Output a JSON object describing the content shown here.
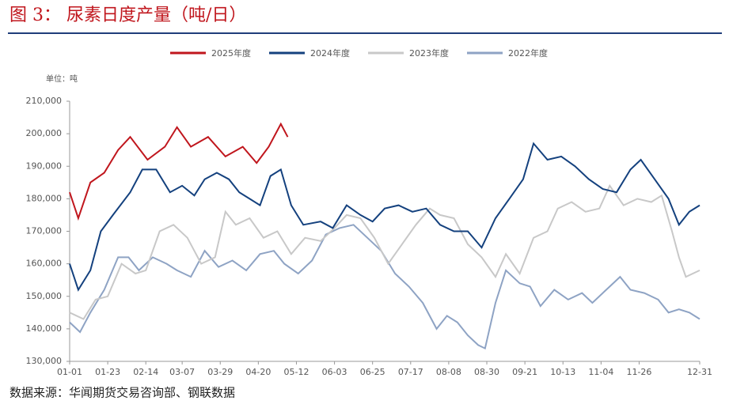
{
  "chart_data": {
    "type": "line",
    "title": "图 3：  尿素日度产量（吨/日）",
    "unit_label": "单位：吨",
    "source": "数据来源：华闻期货交易咨询部、钢联数据",
    "ylim": [
      130000,
      210000
    ],
    "yticks": [
      {
        "value": 130000,
        "label": "130,000"
      },
      {
        "value": 140000,
        "label": "140,000"
      },
      {
        "value": 150000,
        "label": "150,000"
      },
      {
        "value": 160000,
        "label": "160,000"
      },
      {
        "value": 170000,
        "label": "170,000"
      },
      {
        "value": 180000,
        "label": "180,000"
      },
      {
        "value": 190000,
        "label": "190,000"
      },
      {
        "value": 200000,
        "label": "200,000"
      },
      {
        "value": 210000,
        "label": "210,000"
      }
    ],
    "xlim": [
      0,
      364
    ],
    "xticks": [
      {
        "value": 0,
        "label": "01-01"
      },
      {
        "value": 22,
        "label": "01-23"
      },
      {
        "value": 44,
        "label": "02-14"
      },
      {
        "value": 65,
        "label": "03-07"
      },
      {
        "value": 87,
        "label": "03-29"
      },
      {
        "value": 109,
        "label": "04-20"
      },
      {
        "value": 131,
        "label": "05-12"
      },
      {
        "value": 153,
        "label": "06-03"
      },
      {
        "value": 175,
        "label": "06-25"
      },
      {
        "value": 197,
        "label": "07-17"
      },
      {
        "value": 219,
        "label": "08-08"
      },
      {
        "value": 241,
        "label": "08-30"
      },
      {
        "value": 263,
        "label": "09-21"
      },
      {
        "value": 285,
        "label": "10-13"
      },
      {
        "value": 307,
        "label": "11-04"
      },
      {
        "value": 329,
        "label": "11-26"
      },
      {
        "value": 364,
        "label": "12-31"
      }
    ],
    "series": [
      {
        "name": "2025年度",
        "color": "#c0161d",
        "x": [
          0,
          5,
          12,
          20,
          28,
          35,
          45,
          55,
          62,
          70,
          80,
          90,
          100,
          108,
          115,
          122,
          126
        ],
        "values": [
          182000,
          174000,
          185000,
          188000,
          195000,
          199000,
          192000,
          196000,
          202000,
          196000,
          199000,
          193000,
          196000,
          191000,
          196000,
          203000,
          199000
        ]
      },
      {
        "name": "2024年度",
        "color": "#14417e",
        "x": [
          0,
          5,
          12,
          18,
          25,
          35,
          42,
          50,
          58,
          65,
          72,
          78,
          85,
          92,
          98,
          104,
          110,
          116,
          122,
          128,
          135,
          145,
          152,
          160,
          168,
          175,
          182,
          190,
          198,
          206,
          214,
          222,
          230,
          238,
          246,
          254,
          262,
          268,
          276,
          284,
          292,
          300,
          308,
          316,
          324,
          330,
          338,
          346,
          352,
          358,
          364
        ],
        "values": [
          160000,
          152000,
          158000,
          170000,
          175000,
          182000,
          189000,
          189000,
          182000,
          184000,
          181000,
          186000,
          188000,
          186000,
          182000,
          180000,
          178000,
          187000,
          189000,
          178000,
          172000,
          173000,
          171000,
          178000,
          175000,
          173000,
          177000,
          178000,
          176000,
          177000,
          172000,
          170000,
          170000,
          165000,
          174000,
          180000,
          186000,
          197000,
          192000,
          193000,
          190000,
          186000,
          183000,
          182000,
          189000,
          192000,
          186000,
          180000,
          172000,
          176000,
          178000
        ]
      },
      {
        "name": "2023年度",
        "color": "#c8c8c8",
        "x": [
          0,
          8,
          15,
          22,
          30,
          38,
          44,
          52,
          60,
          68,
          76,
          84,
          90,
          96,
          104,
          112,
          120,
          128,
          136,
          145,
          153,
          160,
          168,
          176,
          184,
          192,
          200,
          208,
          214,
          222,
          230,
          238,
          246,
          252,
          260,
          268,
          276,
          282,
          290,
          298,
          306,
          312,
          320,
          328,
          336,
          342,
          348,
          352,
          356,
          364
        ],
        "values": [
          145000,
          143000,
          149000,
          150000,
          160000,
          157000,
          158000,
          170000,
          172000,
          168000,
          160000,
          162000,
          176000,
          172000,
          174000,
          168000,
          170000,
          163000,
          168000,
          167000,
          171000,
          175000,
          174000,
          168000,
          160000,
          166000,
          172000,
          177000,
          175000,
          174000,
          166000,
          162000,
          156000,
          163000,
          157000,
          168000,
          170000,
          177000,
          179000,
          176000,
          177000,
          184000,
          178000,
          180000,
          179000,
          181000,
          170000,
          162000,
          156000,
          158000
        ]
      },
      {
        "name": "2022年度",
        "color": "#8ea3c4",
        "x": [
          0,
          6,
          12,
          20,
          28,
          34,
          40,
          48,
          56,
          62,
          70,
          78,
          86,
          94,
          102,
          110,
          118,
          124,
          132,
          140,
          148,
          156,
          164,
          172,
          180,
          188,
          196,
          204,
          212,
          218,
          224,
          230,
          236,
          240,
          246,
          252,
          260,
          266,
          272,
          280,
          288,
          296,
          302,
          310,
          318,
          324,
          332,
          340,
          346,
          352,
          358,
          364
        ],
        "values": [
          142000,
          139000,
          145000,
          152000,
          162000,
          162000,
          158000,
          162000,
          160000,
          158000,
          156000,
          164000,
          159000,
          161000,
          158000,
          163000,
          164000,
          160000,
          157000,
          161000,
          169000,
          171000,
          172000,
          168000,
          164000,
          157000,
          153000,
          148000,
          140000,
          144000,
          142000,
          138000,
          135000,
          134000,
          148000,
          158000,
          154000,
          153000,
          147000,
          152000,
          149000,
          151000,
          148000,
          152000,
          156000,
          152000,
          151000,
          149000,
          145000,
          146000,
          145000,
          143000
        ]
      }
    ]
  }
}
